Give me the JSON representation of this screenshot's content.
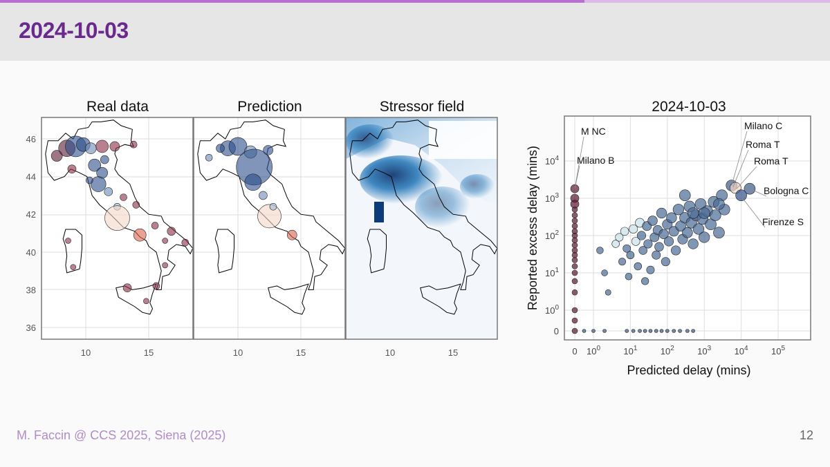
{
  "slide": {
    "title": "2024-10-03",
    "footer_left": "M. Faccin @ CCS 2025, Siena (2025)",
    "page_number": "12",
    "accent_color": "#6a2a8d"
  },
  "maps": {
    "panels": [
      {
        "title": "Real data"
      },
      {
        "title": "Prediction"
      },
      {
        "title": "Stressor field"
      }
    ],
    "y_ticks": [
      "46",
      "44",
      "42",
      "40",
      "38",
      "36"
    ],
    "x_ticks": [
      "10",
      "15"
    ]
  },
  "chart_data": {
    "type": "scatter",
    "title": "2024-10-03",
    "xlabel": "Predicted delay (mins)",
    "ylabel": "Reported excess delay (mins)",
    "xscale": "symlog",
    "yscale": "symlog",
    "x_ticks": [
      "0",
      "10^0",
      "10^1",
      "10^2",
      "10^3",
      "10^4",
      "10^5"
    ],
    "y_ticks": [
      "0",
      "10^0",
      "10^1",
      "10^2",
      "10^3",
      "10^4"
    ],
    "grid": true,
    "annotations": [
      {
        "label": "M NC",
        "x": 0,
        "y": 1800
      },
      {
        "label": "Milano B",
        "x": 0,
        "y": 1800
      },
      {
        "label": "Milano C",
        "x": 5500,
        "y": 2200
      },
      {
        "label": "Roma T",
        "x": 6000,
        "y": 2000
      },
      {
        "label": "Roma T",
        "x": 7500,
        "y": 1800
      },
      {
        "label": "Bologna C",
        "x": 17000,
        "y": 1800
      },
      {
        "label": "Firenze S",
        "x": 9500,
        "y": 1200
      }
    ],
    "points": [
      {
        "x": 0,
        "y": 1800
      },
      {
        "x": 0,
        "y": 1000
      },
      {
        "x": 0,
        "y": 700
      },
      {
        "x": 0,
        "y": 500
      },
      {
        "x": 0,
        "y": 350
      },
      {
        "x": 0,
        "y": 250
      },
      {
        "x": 0,
        "y": 180
      },
      {
        "x": 0,
        "y": 130
      },
      {
        "x": 0,
        "y": 100
      },
      {
        "x": 0,
        "y": 75
      },
      {
        "x": 0,
        "y": 55
      },
      {
        "x": 0,
        "y": 40
      },
      {
        "x": 0,
        "y": 30
      },
      {
        "x": 0,
        "y": 22
      },
      {
        "x": 0,
        "y": 15
      },
      {
        "x": 0,
        "y": 10
      },
      {
        "x": 0,
        "y": 6
      },
      {
        "x": 0,
        "y": 3
      },
      {
        "x": 0,
        "y": 1
      },
      {
        "x": 0,
        "y": 0.5
      },
      {
        "x": 0,
        "y": 0
      },
      {
        "x": 0.5,
        "y": 0
      },
      {
        "x": 1,
        "y": 0
      },
      {
        "x": 2,
        "y": 0
      },
      {
        "x": 8,
        "y": 0
      },
      {
        "x": 12,
        "y": 0
      },
      {
        "x": 18,
        "y": 0
      },
      {
        "x": 25,
        "y": 0
      },
      {
        "x": 35,
        "y": 0
      },
      {
        "x": 50,
        "y": 0
      },
      {
        "x": 70,
        "y": 0
      },
      {
        "x": 100,
        "y": 0
      },
      {
        "x": 150,
        "y": 0
      },
      {
        "x": 220,
        "y": 0
      },
      {
        "x": 350,
        "y": 0
      },
      {
        "x": 500,
        "y": 0
      },
      {
        "x": 1.5,
        "y": 40
      },
      {
        "x": 2,
        "y": 10
      },
      {
        "x": 2.5,
        "y": 3
      },
      {
        "x": 4,
        "y": 60
      },
      {
        "x": 5,
        "y": 90
      },
      {
        "x": 6,
        "y": 20
      },
      {
        "x": 7,
        "y": 130
      },
      {
        "x": 8,
        "y": 45
      },
      {
        "x": 9,
        "y": 8
      },
      {
        "x": 10,
        "y": 30
      },
      {
        "x": 12,
        "y": 150
      },
      {
        "x": 14,
        "y": 70
      },
      {
        "x": 16,
        "y": 15
      },
      {
        "x": 18,
        "y": 220
      },
      {
        "x": 20,
        "y": 100
      },
      {
        "x": 22,
        "y": 40
      },
      {
        "x": 25,
        "y": 6
      },
      {
        "x": 28,
        "y": 180
      },
      {
        "x": 30,
        "y": 60
      },
      {
        "x": 35,
        "y": 12
      },
      {
        "x": 40,
        "y": 250
      },
      {
        "x": 45,
        "y": 90
      },
      {
        "x": 50,
        "y": 30
      },
      {
        "x": 55,
        "y": 140
      },
      {
        "x": 60,
        "y": 50
      },
      {
        "x": 70,
        "y": 400
      },
      {
        "x": 80,
        "y": 110
      },
      {
        "x": 90,
        "y": 20
      },
      {
        "x": 100,
        "y": 200
      },
      {
        "x": 110,
        "y": 70
      },
      {
        "x": 130,
        "y": 300
      },
      {
        "x": 150,
        "y": 130
      },
      {
        "x": 170,
        "y": 40
      },
      {
        "x": 200,
        "y": 500
      },
      {
        "x": 230,
        "y": 180
      },
      {
        "x": 260,
        "y": 80
      },
      {
        "x": 300,
        "y": 300
      },
      {
        "x": 350,
        "y": 120
      },
      {
        "x": 400,
        "y": 600
      },
      {
        "x": 450,
        "y": 220
      },
      {
        "x": 500,
        "y": 60
      },
      {
        "x": 600,
        "y": 350
      },
      {
        "x": 700,
        "y": 150
      },
      {
        "x": 800,
        "y": 700
      },
      {
        "x": 900,
        "y": 280
      },
      {
        "x": 1000,
        "y": 90
      },
      {
        "x": 1200,
        "y": 450
      },
      {
        "x": 1500,
        "y": 200
      },
      {
        "x": 1800,
        "y": 800
      },
      {
        "x": 2000,
        "y": 350
      },
      {
        "x": 2500,
        "y": 120
      },
      {
        "x": 3000,
        "y": 1200
      },
      {
        "x": 3500,
        "y": 500
      },
      {
        "x": 300,
        "y": 1200
      },
      {
        "x": 500,
        "y": 400
      },
      {
        "x": 1000,
        "y": 400
      },
      {
        "x": 2500,
        "y": 700
      },
      {
        "x": 5500,
        "y": 2200
      },
      {
        "x": 7000,
        "y": 1900
      },
      {
        "x": 17000,
        "y": 1800
      },
      {
        "x": 10000,
        "y": 1200
      }
    ]
  }
}
